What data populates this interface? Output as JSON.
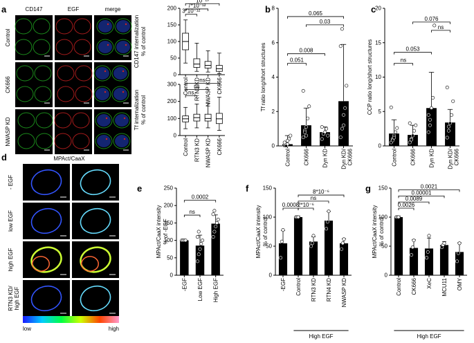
{
  "panels": {
    "a": "a",
    "b": "b",
    "c": "c",
    "d": "d",
    "e": "e",
    "f": "f",
    "g": "g"
  },
  "micro_a": {
    "col_headers": [
      "CD147",
      "EGF",
      "merge"
    ],
    "row_labels": [
      "Control",
      "CK666",
      "NWASP KD"
    ]
  },
  "micro_d": {
    "title": "MPAct/CaaX",
    "row_labels": [
      "- EGF",
      "low EGF",
      "high EGF",
      "RTN3 KD/\nhigh EGF"
    ],
    "row_labels_split": [
      [
        "- EGF"
      ],
      [
        "low EGF"
      ],
      [
        "high EGF"
      ],
      [
        "RTN3 KD/",
        "high EGF"
      ]
    ],
    "scale_low": "low",
    "scale_high": "high"
  },
  "colors": {
    "bar": "#000000",
    "micro_bg": "#000000",
    "green": "#22aa22",
    "red": "#cc2222",
    "blue": "#2244cc",
    "yellow": "#dddd33"
  },
  "chart_data": [
    {
      "id": "a-top",
      "type": "box",
      "ylabel": [
        "CD147 internalization",
        "% of control"
      ],
      "categories": [
        "Control",
        "RTN3 KD",
        "NWASP KD",
        "CK666"
      ],
      "ylim": [
        0,
        200
      ],
      "yticks": [
        0,
        50,
        100,
        150,
        200
      ],
      "boxes": [
        {
          "min": 35,
          "q1": 75,
          "median": 100,
          "q3": 125,
          "max": 165
        },
        {
          "min": 10,
          "q1": 22,
          "median": 32,
          "q3": 48,
          "max": 95
        },
        {
          "min": 8,
          "q1": 20,
          "median": 28,
          "q3": 40,
          "max": 72
        },
        {
          "min": 3,
          "q1": 10,
          "median": 18,
          "q3": 28,
          "max": 65
        }
      ],
      "brackets": [
        {
          "from": 0,
          "to": 3,
          "label": "10⁻¹³"
        },
        {
          "from": 0,
          "to": 2,
          "label": "7*10⁻¹²"
        },
        {
          "from": 0,
          "to": 1,
          "label": "3*10⁻¹²"
        }
      ]
    },
    {
      "id": "a-bottom",
      "type": "box",
      "ylabel": [
        "Tf internalization",
        "% of control"
      ],
      "categories": [
        "Control",
        "RTN3 KD",
        "NWASP KD",
        "CK666"
      ],
      "ylim": [
        0,
        300
      ],
      "yticks": [
        0,
        100,
        200,
        300
      ],
      "boxes": [
        {
          "min": 40,
          "q1": 80,
          "median": 98,
          "q3": 115,
          "max": 165
        },
        {
          "min": 45,
          "q1": 85,
          "median": 105,
          "q3": 125,
          "max": 185
        },
        {
          "min": 45,
          "q1": 85,
          "median": 100,
          "q3": 125,
          "max": 190
        },
        {
          "min": 30,
          "q1": 70,
          "median": 98,
          "q3": 130,
          "max": 225
        }
      ],
      "brackets": [
        {
          "from": 0,
          "to": 3,
          "label": "ns"
        },
        {
          "from": 0,
          "to": 2,
          "label": "ns"
        },
        {
          "from": 0,
          "to": 1,
          "label": "ns"
        }
      ]
    },
    {
      "id": "b",
      "type": "bar",
      "ylabel": [
        "Tf ratio long/short structures"
      ],
      "categories": [
        "Control",
        "CK666",
        "Dyn KD",
        "Dyn KD/\nCK666"
      ],
      "ylim": [
        0,
        8
      ],
      "yticks": [
        0,
        2,
        4,
        6,
        8
      ],
      "values": [
        0.1,
        1.2,
        0.8,
        2.6
      ],
      "errors": [
        0.5,
        1.0,
        0.3,
        3.3
      ],
      "points": [
        [
          0,
          0,
          0.1,
          0.4,
          0.6,
          0.2,
          0,
          0.3
        ],
        [
          0.5,
          0.9,
          1.1,
          1.6,
          2.3,
          3.2,
          0.8,
          0.6
        ],
        [
          0.4,
          0.7,
          0.8,
          1.0,
          0.6,
          1.1,
          0.7
        ],
        [
          0.5,
          1.0,
          1.8,
          2.2,
          3.5,
          5.8,
          6.8,
          1.2
        ]
      ],
      "brackets": [
        {
          "from": 0,
          "to": 2,
          "label": "0.008"
        },
        {
          "from": 0,
          "to": 1,
          "label": "0.051"
        },
        {
          "from": 0,
          "to": 3,
          "label": "0.065"
        },
        {
          "from": 1,
          "to": 3,
          "label": "0.03"
        }
      ]
    },
    {
      "id": "c",
      "type": "bar",
      "ylabel": [
        "CCP ratio long/short structures"
      ],
      "categories": [
        "Control",
        "CK666",
        "Dyn KD",
        "Dyn KD/\nCK666"
      ],
      "ylim": [
        0,
        20
      ],
      "yticks": [
        0,
        5,
        10,
        15,
        20
      ],
      "values": [
        1.8,
        1.6,
        5.5,
        3.4
      ],
      "errors": [
        2.0,
        1.4,
        5.2,
        1.9
      ],
      "points": [
        [
          0.5,
          1.0,
          1.5,
          2.0,
          2.6,
          5.6,
          0.8,
          1.2
        ],
        [
          0.5,
          1.0,
          1.5,
          2.2,
          3.0,
          3.3,
          0.9
        ],
        [
          2.0,
          3.8,
          5.5,
          7.0,
          17.5,
          4.5,
          3.0
        ],
        [
          1.2,
          2.2,
          3.3,
          4.5,
          6.5,
          8.5,
          2.8
        ]
      ],
      "brackets": [
        {
          "from": 0,
          "to": 2,
          "label": "0.053"
        },
        {
          "from": 0,
          "to": 1,
          "label": "ns"
        },
        {
          "from": 1,
          "to": 3,
          "label": "0.076"
        },
        {
          "from": 2,
          "to": 3,
          "label": "ns"
        }
      ]
    },
    {
      "id": "e",
      "type": "bar",
      "ylabel": [
        "MPAct/CaaX intensity",
        "% of -EGF"
      ],
      "categories": [
        "-EGF",
        "Low EGF",
        "High EGF"
      ],
      "ylim": [
        0,
        250
      ],
      "yticks": [
        0,
        50,
        100,
        150,
        200,
        250
      ],
      "values": [
        100,
        85,
        148
      ],
      "errors": [
        3,
        30,
        25
      ],
      "points": [
        [
          100,
          100,
          100,
          100
        ],
        [
          40,
          60,
          75,
          90,
          100,
          110,
          125
        ],
        [
          110,
          125,
          140,
          150,
          160,
          175,
          185
        ]
      ],
      "brackets": [
        {
          "from": 0,
          "to": 1,
          "label": "ns"
        },
        {
          "from": 0,
          "to": 2,
          "label": "0.0002"
        }
      ]
    },
    {
      "id": "f",
      "type": "bar",
      "ylabel": [
        "MPAct/CaaX intensity",
        "% of control"
      ],
      "categories": [
        "-EGF",
        "Control",
        "RTN3 KD",
        "RTN4 KD",
        "NWASP KD"
      ],
      "ylim": [
        0,
        150
      ],
      "yticks": [
        0,
        50,
        100,
        150
      ],
      "values": [
        55,
        100,
        58,
        94,
        55
      ],
      "errors": [
        22,
        2,
        8,
        16,
        8
      ],
      "points": [
        [
          30,
          58,
          78
        ],
        [
          100,
          100,
          100
        ],
        [
          50,
          55,
          68
        ],
        [
          80,
          92,
          110
        ],
        [
          45,
          55,
          62
        ]
      ],
      "brackets": [
        {
          "from": 0,
          "to": 1,
          "label": "0.0008"
        },
        {
          "from": 1,
          "to": 2,
          "label": "2*10⁻⁶"
        },
        {
          "from": 1,
          "to": 3,
          "label": "ns"
        },
        {
          "from": 1,
          "to": 4,
          "label": "8*10⁻⁶"
        }
      ],
      "group_label": "High EGF",
      "group_from": 1,
      "group_to": 4
    },
    {
      "id": "g",
      "type": "bar",
      "ylabel": [
        "MPAct/CaaX intensity",
        "% of control"
      ],
      "categories": [
        "Control",
        "CK666",
        "XeC",
        "MCU11",
        "OMY"
      ],
      "ylim": [
        0,
        150
      ],
      "yticks": [
        0,
        50,
        100,
        150
      ],
      "values": [
        100,
        47,
        46,
        52,
        40
      ],
      "errors": [
        2,
        14,
        18,
        6,
        16
      ],
      "points": [
        [
          100,
          100,
          100
        ],
        [
          35,
          48,
          60
        ],
        [
          30,
          40,
          68
        ],
        [
          48,
          52,
          55
        ],
        [
          24,
          38,
          55
        ]
      ],
      "brackets": [
        {
          "from": 0,
          "to": 1,
          "label": "0.0026"
        },
        {
          "from": 0,
          "to": 2,
          "label": "0.0089"
        },
        {
          "from": 0,
          "to": 3,
          "label": "0.00001"
        },
        {
          "from": 0,
          "to": 4,
          "label": "0.0021"
        }
      ],
      "group_label": "High EGF",
      "group_from": 0,
      "group_to": 4
    }
  ]
}
